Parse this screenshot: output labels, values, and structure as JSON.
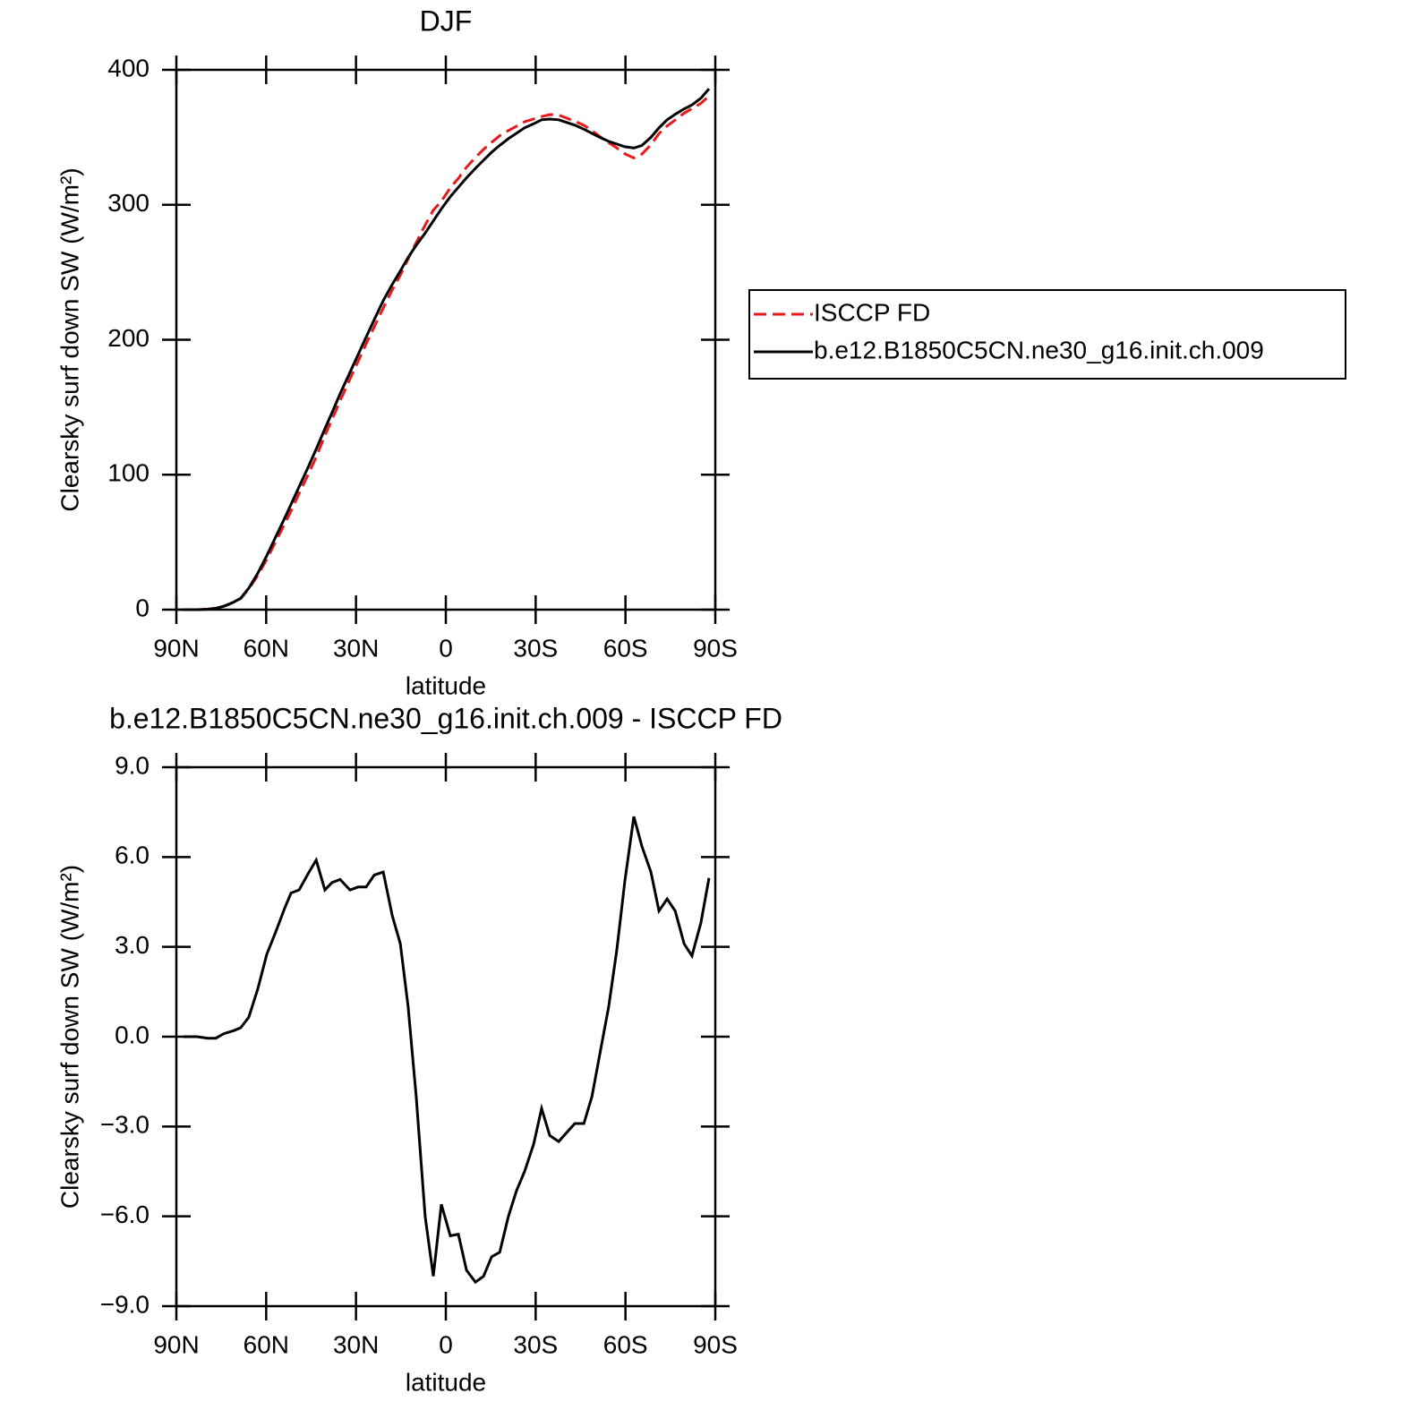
{
  "chart_data": [
    {
      "type": "line",
      "title": "DJF",
      "xlabel": "latitude",
      "ylabel": "Clearsky surf down SW (W/m²)",
      "x": [
        87.6,
        83.1,
        79.5,
        76.8,
        74.2,
        70.9,
        68.5,
        65.8,
        62.8,
        59.8,
        56.8,
        53.8,
        51.7,
        49.0,
        45.7,
        43.3,
        40.4,
        38.0,
        35.3,
        32.0,
        29.3,
        26.6,
        23.9,
        20.9,
        17.9,
        15.2,
        12.6,
        9.9,
        6.9,
        4.2,
        1.5,
        -1.5,
        -4.2,
        -6.9,
        -9.9,
        -12.6,
        -15.3,
        -18.0,
        -20.9,
        -23.6,
        -26.3,
        -29.3,
        -32.0,
        -34.7,
        -37.7,
        -40.4,
        -43.1,
        -46.1,
        -48.8,
        -51.4,
        -54.4,
        -57.1,
        -59.8,
        -62.8,
        -65.5,
        -68.5,
        -71.2,
        -73.9,
        -76.6,
        -79.6,
        -82.2,
        -85.2,
        -87.9
      ],
      "series": [
        {
          "name": "ISCCP FD",
          "color": "#e41a1c",
          "linestyle": "dashed",
          "values": [
            0,
            0,
            0.35,
            1.05,
            2.4,
            5.3,
            8.2,
            15.35,
            25.4,
            37.25,
            50.5,
            63.7,
            73.2,
            86.1,
            101.5,
            113.1,
            129.1,
            140.85,
            154.75,
            171.1,
            184,
            197,
            209.6,
            223.5,
            236.95,
            247.9,
            260,
            272,
            285,
            296,
            302.6,
            312.65,
            319.6,
            327.8,
            335.2,
            341,
            346.35,
            351.2,
            355,
            358.15,
            361.5,
            363.6,
            365.4,
            366.8,
            366.5,
            364.2,
            361.9,
            358.9,
            355,
            350.6,
            346,
            342.1,
            337.8,
            334.65,
            337.65,
            344.5,
            352.8,
            358.4,
            362.8,
            367.9,
            371.3,
            375.2,
            380.7
          ]
        },
        {
          "name": "b.e12.B1850C5CN.ne30_g16.init.ch.009",
          "color": "#000000",
          "linestyle": "solid",
          "values": [
            0,
            0,
            0.3,
            1,
            2.5,
            5.5,
            8.5,
            16,
            27,
            40,
            54,
            68,
            78,
            91,
            107,
            119,
            134,
            146,
            160,
            176,
            189,
            202,
            215,
            229,
            241,
            251,
            261,
            270,
            279,
            288,
            297,
            306,
            313,
            320,
            327,
            333,
            339,
            344,
            349,
            353,
            357,
            360,
            363,
            363.5,
            363,
            361,
            359,
            356,
            353,
            350,
            347,
            345,
            343,
            342,
            344,
            350,
            357,
            363,
            367,
            371,
            374,
            379,
            386
          ]
        }
      ],
      "xlim": [
        90,
        -90
      ],
      "xticks": [
        {
          "value": 90,
          "label": "90N"
        },
        {
          "value": 60,
          "label": "60N"
        },
        {
          "value": 30,
          "label": "30N"
        },
        0,
        {
          "value": -30,
          "label": "30S"
        },
        {
          "value": -60,
          "label": "60S"
        },
        {
          "value": -90,
          "label": "90S"
        }
      ],
      "ylim": [
        0,
        400
      ],
      "yticks": [
        0,
        100,
        200,
        300,
        400
      ],
      "legend": "right"
    },
    {
      "type": "line",
      "title": "b.e12.B1850C5CN.ne30_g16.init.ch.009 - ISCCP FD",
      "xlabel": "latitude",
      "ylabel": "Clearsky surf down SW (W/m²)",
      "x": [
        87.6,
        83.1,
        79.5,
        76.8,
        74.2,
        70.9,
        68.5,
        65.8,
        62.8,
        59.8,
        56.8,
        53.8,
        51.7,
        49.0,
        45.7,
        43.3,
        40.4,
        38.0,
        35.3,
        32.0,
        29.3,
        26.6,
        23.9,
        20.9,
        17.9,
        15.2,
        12.6,
        9.9,
        6.9,
        4.2,
        1.5,
        -1.5,
        -4.2,
        -6.9,
        -9.9,
        -12.6,
        -15.3,
        -18.0,
        -20.9,
        -23.6,
        -26.3,
        -29.3,
        -32.0,
        -34.7,
        -37.7,
        -40.4,
        -43.1,
        -46.1,
        -48.8,
        -51.4,
        -54.4,
        -57.1,
        -59.8,
        -62.8,
        -65.5,
        -68.5,
        -71.2,
        -73.9,
        -76.6,
        -79.6,
        -82.2,
        -85.2,
        -87.9
      ],
      "series": [
        {
          "color": "#000000",
          "linestyle": "solid",
          "values": [
            0,
            0,
            -0.05,
            -0.05,
            0.1,
            0.2,
            0.3,
            0.65,
            1.6,
            2.75,
            3.5,
            4.3,
            4.8,
            4.9,
            5.5,
            5.9,
            4.9,
            5.15,
            5.25,
            4.9,
            5.0,
            5.0,
            5.4,
            5.5,
            4.05,
            3.1,
            1.0,
            -2.0,
            -6.0,
            -8.0,
            -5.6,
            -6.65,
            -6.6,
            -7.8,
            -8.2,
            -8.0,
            -7.35,
            -7.2,
            -6.0,
            -5.15,
            -4.5,
            -3.6,
            -2.4,
            -3.3,
            -3.5,
            -3.2,
            -2.9,
            -2.9,
            -2.0,
            -0.6,
            1.0,
            2.9,
            5.2,
            7.35,
            6.35,
            5.5,
            4.2,
            4.6,
            4.2,
            3.1,
            2.7,
            3.8,
            5.3
          ]
        }
      ],
      "xlim": [
        90,
        -90
      ],
      "xticks": [
        {
          "value": 90,
          "label": "90N"
        },
        {
          "value": 60,
          "label": "60N"
        },
        {
          "value": 30,
          "label": "30N"
        },
        0,
        {
          "value": -30,
          "label": "30S"
        },
        {
          "value": -60,
          "label": "60S"
        },
        {
          "value": -90,
          "label": "90S"
        }
      ],
      "ylim": [
        -9,
        9
      ],
      "yticks": [
        {
          "value": -9,
          "label": "−9.0"
        },
        {
          "value": -6,
          "label": "−6.0"
        },
        {
          "value": -3,
          "label": "−3.0"
        },
        {
          "value": 0,
          "label": "0.0"
        },
        {
          "value": 3,
          "label": "3.0"
        },
        {
          "value": 6,
          "label": "6.0"
        },
        {
          "value": 9,
          "label": "9.0"
        }
      ]
    }
  ]
}
